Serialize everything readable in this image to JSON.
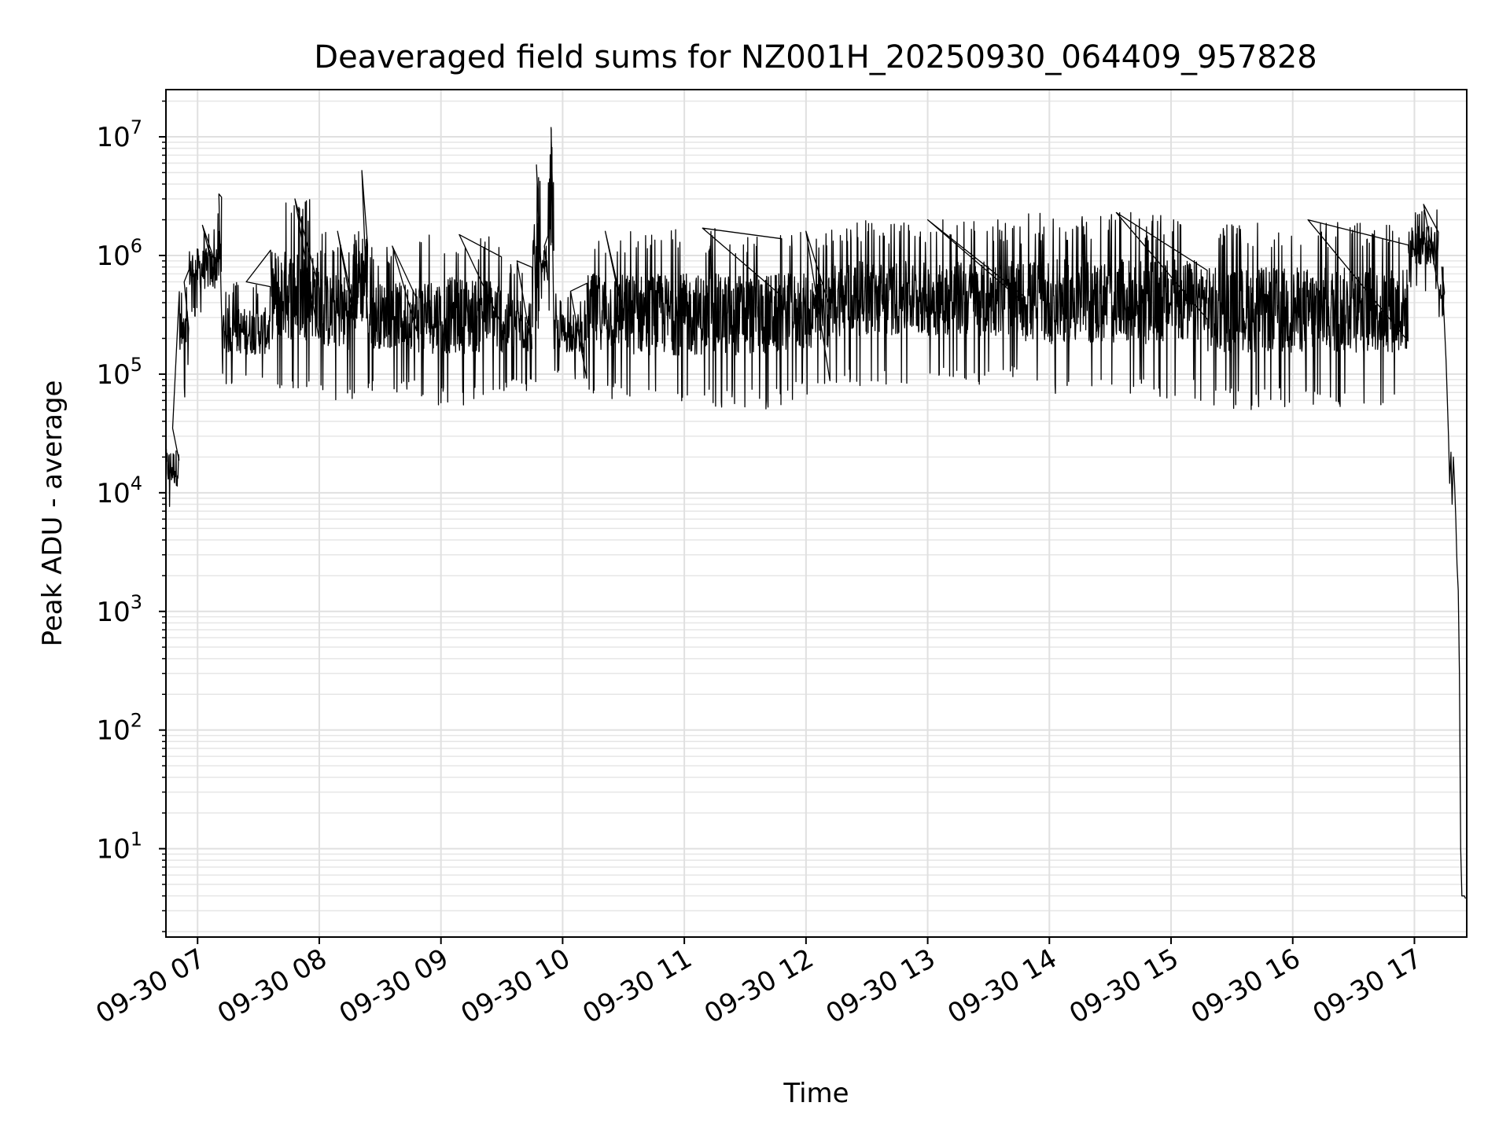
{
  "chart_data": {
    "type": "line",
    "title": "Deaveraged field sums for NZ001H_20250930_064409_957828",
    "xlabel": "Time",
    "ylabel": "Peak ADU - average",
    "yscale": "log",
    "ylim": [
      1.8,
      25000000
    ],
    "xlim_hours": [
      6.74,
      17.43
    ],
    "grid": true,
    "x_ticks": [
      {
        "hour": 7,
        "label": "09-30 07"
      },
      {
        "hour": 8,
        "label": "09-30 08"
      },
      {
        "hour": 9,
        "label": "09-30 09"
      },
      {
        "hour": 10,
        "label": "09-30 10"
      },
      {
        "hour": 11,
        "label": "09-30 11"
      },
      {
        "hour": 12,
        "label": "09-30 12"
      },
      {
        "hour": 13,
        "label": "09-30 13"
      },
      {
        "hour": 14,
        "label": "09-30 14"
      },
      {
        "hour": 15,
        "label": "09-30 15"
      },
      {
        "hour": 16,
        "label": "09-30 16"
      },
      {
        "hour": 17,
        "label": "09-30 17"
      }
    ],
    "y_ticks": [
      {
        "exp": 1,
        "base": "10",
        "sup": "1"
      },
      {
        "exp": 2,
        "base": "10",
        "sup": "2"
      },
      {
        "exp": 3,
        "base": "10",
        "sup": "3"
      },
      {
        "exp": 4,
        "base": "10",
        "sup": "4"
      },
      {
        "exp": 5,
        "base": "10",
        "sup": "5"
      },
      {
        "exp": 6,
        "base": "10",
        "sup": "6"
      },
      {
        "exp": 7,
        "base": "10",
        "sup": "7"
      }
    ],
    "series": [
      {
        "name": "Peak ADU - average",
        "color": "#000000",
        "segments": [
          {
            "start": 6.74,
            "end": 6.85,
            "low": 7000,
            "high": 35000
          },
          {
            "start": 6.85,
            "end": 6.93,
            "low": 60000,
            "high": 600000
          },
          {
            "start": 6.93,
            "end": 7.15,
            "low": 300000,
            "high": 1800000
          },
          {
            "start": 7.15,
            "end": 7.2,
            "low": 250000,
            "high": 3300000
          },
          {
            "start": 7.2,
            "end": 7.6,
            "low": 80000,
            "high": 600000
          },
          {
            "start": 7.6,
            "end": 8.0,
            "low": 60000,
            "high": 3000000
          },
          {
            "start": 8.0,
            "end": 8.3,
            "low": 60000,
            "high": 1600000
          },
          {
            "start": 8.3,
            "end": 8.4,
            "low": 70000,
            "high": 5200000
          },
          {
            "start": 8.4,
            "end": 8.8,
            "low": 70000,
            "high": 1200000
          },
          {
            "start": 8.8,
            "end": 9.5,
            "low": 55000,
            "high": 1500000
          },
          {
            "start": 9.5,
            "end": 9.75,
            "low": 70000,
            "high": 900000
          },
          {
            "start": 9.75,
            "end": 9.82,
            "low": 60000,
            "high": 5800000
          },
          {
            "start": 9.82,
            "end": 9.88,
            "low": 400000,
            "high": 1200000
          },
          {
            "start": 9.88,
            "end": 9.93,
            "low": 300000,
            "high": 12000000
          },
          {
            "start": 9.93,
            "end": 10.2,
            "low": 90000,
            "high": 500000
          },
          {
            "start": 10.2,
            "end": 10.5,
            "low": 60000,
            "high": 1600000
          },
          {
            "start": 10.5,
            "end": 11.8,
            "low": 50000,
            "high": 1700000
          },
          {
            "start": 11.8,
            "end": 12.2,
            "low": 60000,
            "high": 1600000
          },
          {
            "start": 12.2,
            "end": 13.8,
            "low": 80000,
            "high": 2000000
          },
          {
            "start": 13.8,
            "end": 15.3,
            "low": 60000,
            "high": 2300000
          },
          {
            "start": 15.3,
            "end": 16.95,
            "low": 50000,
            "high": 2000000
          },
          {
            "start": 16.95,
            "end": 17.2,
            "low": 500000,
            "high": 2700000
          },
          {
            "start": 17.2,
            "end": 17.25,
            "low": 300000,
            "high": 800000
          }
        ],
        "tail": [
          [
            17.26,
            130000
          ],
          [
            17.28,
            30000
          ],
          [
            17.29,
            12000
          ],
          [
            17.3,
            22000
          ],
          [
            17.31,
            8000
          ],
          [
            17.32,
            20000
          ],
          [
            17.33,
            12000
          ],
          [
            17.34,
            6000
          ],
          [
            17.35,
            2500
          ],
          [
            17.36,
            1500
          ],
          [
            17.37,
            300
          ],
          [
            17.38,
            10
          ],
          [
            17.39,
            4
          ],
          [
            17.41,
            4
          ],
          [
            17.42,
            3.8
          ]
        ]
      }
    ]
  }
}
